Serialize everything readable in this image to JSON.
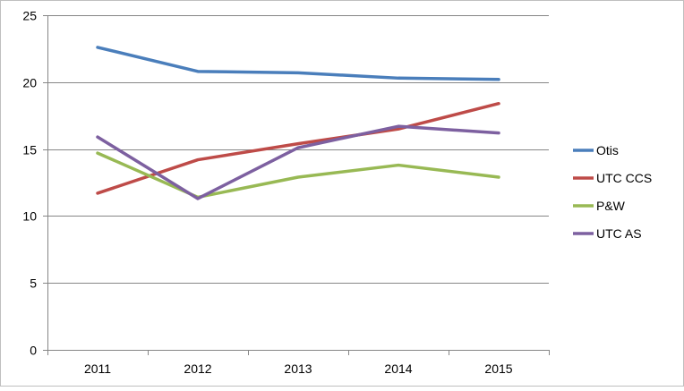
{
  "chart_data": {
    "type": "line",
    "categories": [
      "2011",
      "2012",
      "2013",
      "2014",
      "2015"
    ],
    "ylim": [
      0,
      25
    ],
    "yticks": [
      0,
      5,
      10,
      15,
      20,
      25
    ],
    "grid": true,
    "legend_position": "right",
    "series": [
      {
        "name": "Otis",
        "color": "#4a7ebb",
        "values": [
          22.6,
          20.8,
          20.7,
          20.3,
          20.2
        ]
      },
      {
        "name": "UTC CCS",
        "color": "#be4b48",
        "values": [
          11.7,
          14.2,
          15.4,
          16.5,
          18.4
        ]
      },
      {
        "name": "P&W",
        "color": "#98b954",
        "values": [
          14.7,
          11.4,
          12.9,
          13.8,
          12.9
        ]
      },
      {
        "name": "UTC AS",
        "color": "#7d60a0",
        "values": [
          15.9,
          11.3,
          15.1,
          16.7,
          16.2
        ]
      }
    ]
  }
}
